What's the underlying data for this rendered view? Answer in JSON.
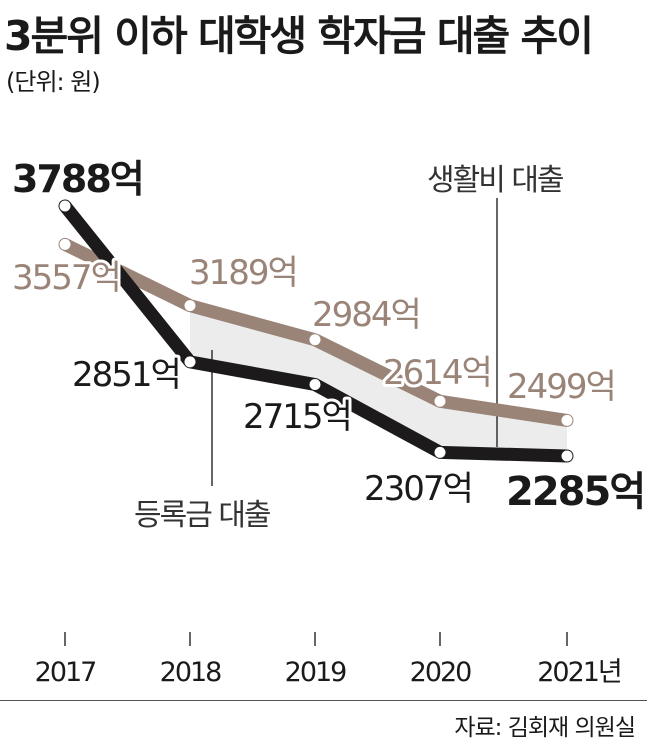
{
  "title": "3분위 이하 대학생 학자금 대출 추이",
  "unit": "(단위: 원)",
  "source": "자료: 김회재 의원실",
  "colors": {
    "tuition": "#1c1a1b",
    "living": "#9a8478",
    "band": "#ececec"
  },
  "chart_data": {
    "type": "line",
    "title": "3분위 이하 대학생 학자금 대출 추이",
    "x": [
      "2017",
      "2018",
      "2019",
      "2020",
      "2021년"
    ],
    "series": [
      {
        "name": "등록금 대출",
        "values": [
          3788,
          2851,
          2715,
          2307,
          2285
        ],
        "labels": [
          "3788억",
          "2851억",
          "2715억",
          "2307억",
          "2285억"
        ]
      },
      {
        "name": "생활비 대출",
        "values": [
          3557,
          3189,
          2984,
          2614,
          2499
        ],
        "labels": [
          "3557억",
          "3189억",
          "2984억",
          "2614억",
          "2499억"
        ]
      }
    ],
    "grid": false
  }
}
